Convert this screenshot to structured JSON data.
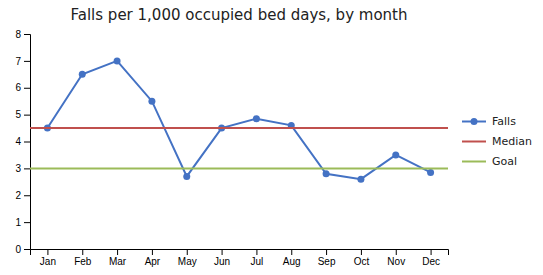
{
  "chart_data": {
    "type": "line",
    "title": "Falls per 1,000 occupied bed days, by month",
    "categories": [
      "Jan",
      "Feb",
      "Mar",
      "Apr",
      "May",
      "Jun",
      "Jul",
      "Aug",
      "Sep",
      "Oct",
      "Nov",
      "Dec"
    ],
    "series": [
      {
        "name": "Falls",
        "color": "#4472C4",
        "marker": "circle",
        "values": [
          4.5,
          6.5,
          7.0,
          5.5,
          2.7,
          4.5,
          4.85,
          4.6,
          2.8,
          2.6,
          3.5,
          2.85
        ]
      },
      {
        "name": "Median",
        "color": "#C0504D",
        "type": "hline",
        "value": 4.5
      },
      {
        "name": "Goal",
        "color": "#9BBB59",
        "type": "hline",
        "value": 3.0
      }
    ],
    "ylim": [
      0,
      8
    ],
    "yticks": [
      0,
      1,
      2,
      3,
      4,
      5,
      6,
      7,
      8
    ],
    "grid": false,
    "legend": "right"
  }
}
